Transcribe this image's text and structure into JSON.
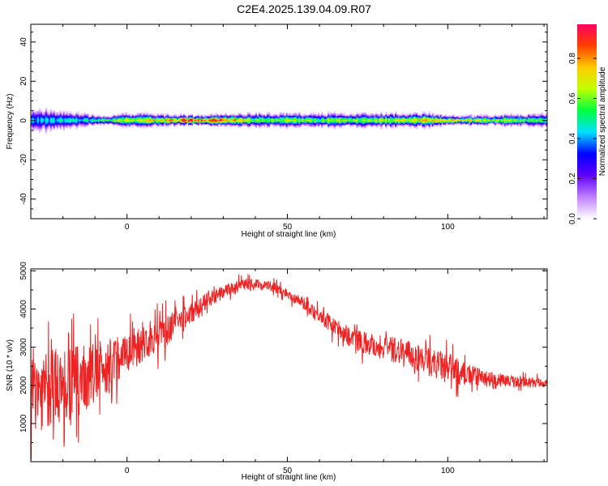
{
  "figure_title": "C2E4.2025.139.04.09.R07",
  "colors": {
    "snr_line": "#ee2222",
    "axes": "#000000",
    "background": "#ffffff"
  },
  "chart_data": [
    {
      "type": "heatmap",
      "title": "",
      "xlabel": "Height of straight line (km)",
      "ylabel": "Frequency (Hz)",
      "xlim": [
        -30,
        131
      ],
      "ylim": [
        -50,
        49
      ],
      "x_ticks": [
        0,
        50,
        100
      ],
      "y_ticks": [
        -40,
        -20,
        0,
        20,
        40
      ],
      "grid": false,
      "colorbar": {
        "label": "Normalized spectral amplitude",
        "range": [
          0,
          0.97
        ],
        "ticks": [
          0.0,
          0.2,
          0.4,
          0.6,
          0.8
        ],
        "colormap": [
          "#ffffff",
          "#c080ff",
          "#6000ff",
          "#0000ff",
          "#00e0ff",
          "#00ff40",
          "#c0ff00",
          "#ffcc00",
          "#ff4000",
          "#ff0060"
        ]
      },
      "band_center_hz": 0,
      "band_halfwidth_hz": [
        [
          -30,
          5
        ],
        [
          -25,
          5
        ],
        [
          -20,
          4
        ],
        [
          -15,
          3
        ],
        [
          -10,
          2
        ],
        [
          -5,
          2
        ],
        [
          0,
          3
        ],
        [
          20,
          2
        ],
        [
          40,
          3
        ],
        [
          60,
          3
        ],
        [
          80,
          3
        ],
        [
          95,
          3
        ],
        [
          100,
          2
        ],
        [
          110,
          2
        ],
        [
          131,
          3
        ]
      ],
      "peak_amplitude": [
        [
          -30,
          0.45
        ],
        [
          -20,
          0.5
        ],
        [
          -10,
          0.55
        ],
        [
          0,
          0.75
        ],
        [
          10,
          0.8
        ],
        [
          20,
          0.95
        ],
        [
          30,
          0.95
        ],
        [
          40,
          0.7
        ],
        [
          60,
          0.65
        ],
        [
          80,
          0.7
        ],
        [
          90,
          0.8
        ],
        [
          100,
          0.85
        ],
        [
          110,
          0.75
        ],
        [
          131,
          0.6
        ]
      ]
    },
    {
      "type": "line",
      "title": "",
      "xlabel": "Height of straight line (km)",
      "ylabel": "SNR (10 * v/v)",
      "xlim": [
        -30,
        131
      ],
      "ylim": [
        0,
        5050
      ],
      "x_ticks": [
        0,
        50,
        100
      ],
      "y_ticks": [
        1000,
        2000,
        3000,
        4000,
        5000
      ],
      "grid": false,
      "series": [
        {
          "trend": [
            [
              -30,
              1800
            ],
            [
              -25,
              1900
            ],
            [
              -20,
              2000
            ],
            [
              -15,
              2100
            ],
            [
              -10,
              2300
            ],
            [
              -5,
              2600
            ],
            [
              0,
              2900
            ],
            [
              5,
              3100
            ],
            [
              10,
              3300
            ],
            [
              15,
              3600
            ],
            [
              20,
              3900
            ],
            [
              25,
              4200
            ],
            [
              30,
              4450
            ],
            [
              35,
              4600
            ],
            [
              40,
              4650
            ],
            [
              45,
              4600
            ],
            [
              50,
              4400
            ],
            [
              55,
              4150
            ],
            [
              60,
              3850
            ],
            [
              65,
              3500
            ],
            [
              70,
              3250
            ],
            [
              75,
              3100
            ],
            [
              80,
              3000
            ],
            [
              85,
              2900
            ],
            [
              90,
              2750
            ],
            [
              95,
              2600
            ],
            [
              100,
              2450
            ],
            [
              105,
              2300
            ],
            [
              110,
              2200
            ],
            [
              115,
              2150
            ],
            [
              120,
              2100
            ],
            [
              125,
              2080
            ],
            [
              131,
              2050
            ]
          ],
          "noise_amplitude": [
            [
              -30,
              1300
            ],
            [
              -20,
              1300
            ],
            [
              -10,
              1000
            ],
            [
              0,
              700
            ],
            [
              10,
              550
            ],
            [
              20,
              350
            ],
            [
              30,
              220
            ],
            [
              40,
              180
            ],
            [
              50,
              160
            ],
            [
              60,
              250
            ],
            [
              70,
              350
            ],
            [
              80,
              400
            ],
            [
              90,
              450
            ],
            [
              100,
              500
            ],
            [
              110,
              300
            ],
            [
              120,
              180
            ],
            [
              131,
              150
            ]
          ]
        }
      ]
    }
  ]
}
